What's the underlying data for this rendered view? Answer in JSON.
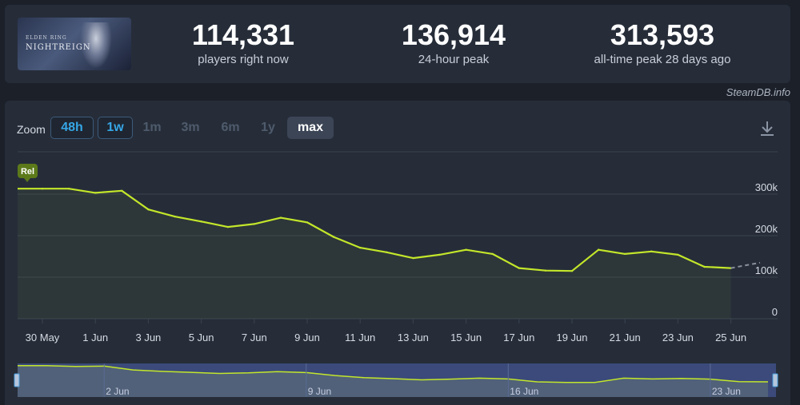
{
  "game": {
    "title_line1": "ELDEN RING",
    "title_line2": "NIGHTREIGN"
  },
  "stats": [
    {
      "value": "114,331",
      "label": "players right now"
    },
    {
      "value": "136,914",
      "label": "24-hour peak"
    },
    {
      "value": "313,593",
      "label": "all-time peak 28 days ago"
    }
  ],
  "credit": "SteamDB.info",
  "zoom": {
    "label": "Zoom",
    "buttons": [
      {
        "label": "48h",
        "state": "outline"
      },
      {
        "label": "1w",
        "state": "outline"
      },
      {
        "label": "1m",
        "state": "muted"
      },
      {
        "label": "3m",
        "state": "muted"
      },
      {
        "label": "6m",
        "state": "muted"
      },
      {
        "label": "1y",
        "state": "muted"
      },
      {
        "label": "max",
        "state": "active"
      }
    ],
    "download_icon": "download-icon"
  },
  "colors": {
    "line": "#c3e62a",
    "grid": "#3a4250",
    "navigator_bg": "#3b4a7a",
    "badge": "#5c7a1a"
  },
  "chart_data": {
    "type": "line",
    "title": "",
    "xlabel": "",
    "ylabel": "",
    "y_ticks": [
      "0",
      "100k",
      "200k",
      "300k"
    ],
    "ylim": [
      0,
      320000
    ],
    "x_ticks": [
      "30 May",
      "1 Jun",
      "3 Jun",
      "5 Jun",
      "7 Jun",
      "9 Jun",
      "11 Jun",
      "13 Jun",
      "15 Jun",
      "17 Jun",
      "19 Jun",
      "21 Jun",
      "23 Jun",
      "25 Jun"
    ],
    "grid": true,
    "annotation": "Rel",
    "series": [
      {
        "x": [
          "2025-05-30",
          "2025-05-31",
          "2025-06-01",
          "2025-06-02",
          "2025-06-03",
          "2025-06-04",
          "2025-06-05",
          "2025-06-06",
          "2025-06-07",
          "2025-06-08",
          "2025-06-09",
          "2025-06-10",
          "2025-06-11",
          "2025-06-12",
          "2025-06-13",
          "2025-06-14",
          "2025-06-15",
          "2025-06-16",
          "2025-06-17",
          "2025-06-18",
          "2025-06-19",
          "2025-06-20",
          "2025-06-21",
          "2025-06-22",
          "2025-06-23",
          "2025-06-24",
          "2025-06-25"
        ],
        "values": [
          313000,
          313000,
          303000,
          308000,
          263000,
          246000,
          234000,
          221000,
          228000,
          243000,
          232000,
          197000,
          171000,
          160000,
          146000,
          154000,
          166000,
          156000,
          122000,
          116000,
          115000,
          166000,
          156000,
          162000,
          154000,
          125000,
          122000
        ]
      }
    ],
    "navigator": {
      "x_ticks": [
        "2 Jun",
        "9 Jun",
        "16 Jun",
        "23 Jun"
      ]
    }
  }
}
